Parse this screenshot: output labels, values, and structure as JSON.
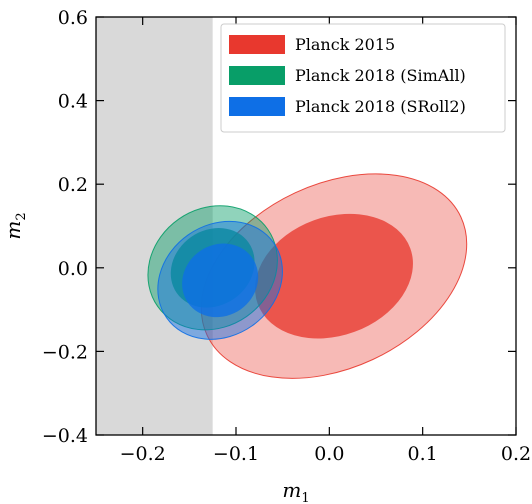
{
  "chart_data": {
    "type": "contour",
    "xlabel": "m",
    "xlabel_sub": "1",
    "ylabel": "m",
    "ylabel_sub": "2",
    "xlim": [
      -0.25,
      0.2
    ],
    "ylim": [
      -0.4,
      0.6
    ],
    "xticks": [
      -0.2,
      -0.1,
      0.0,
      0.1,
      0.2
    ],
    "xtick_labels": [
      "−0.2",
      "−0.1",
      "0.0",
      "0.1",
      "0.2"
    ],
    "yticks": [
      -0.4,
      -0.2,
      0.0,
      0.2,
      0.4,
      0.6
    ],
    "ytick_labels": [
      "−0.4",
      "−0.2",
      "0.0",
      "0.2",
      "0.4",
      "0.6"
    ],
    "excluded_region": {
      "x": [
        -0.25,
        -0.125
      ],
      "color": "#d9d9d9"
    },
    "legend_position": "top-right",
    "series": [
      {
        "name": "Planck 2015",
        "color": "#e8382e",
        "center": [
          0.005,
          -0.02
        ],
        "contour_68": {
          "rx": 0.087,
          "ry": 0.142,
          "angle_deg": 20
        },
        "contour_95": {
          "rx": 0.15,
          "ry": 0.22,
          "angle_deg": 25
        }
      },
      {
        "name": "Planck 2018 (SimAll)",
        "color": "#089e68",
        "center": [
          -0.125,
          0.0
        ],
        "contour_68": {
          "rx": 0.047,
          "ry": 0.09,
          "angle_deg": 35
        },
        "contour_95": {
          "rx": 0.072,
          "ry": 0.142,
          "angle_deg": 35
        }
      },
      {
        "name": "Planck 2018 (SRoll2)",
        "color": "#0e6fe6",
        "center": [
          -0.117,
          -0.03
        ],
        "contour_68": {
          "rx": 0.042,
          "ry": 0.085,
          "angle_deg": 35
        },
        "contour_95": {
          "rx": 0.07,
          "ry": 0.133,
          "angle_deg": 35
        }
      }
    ]
  }
}
